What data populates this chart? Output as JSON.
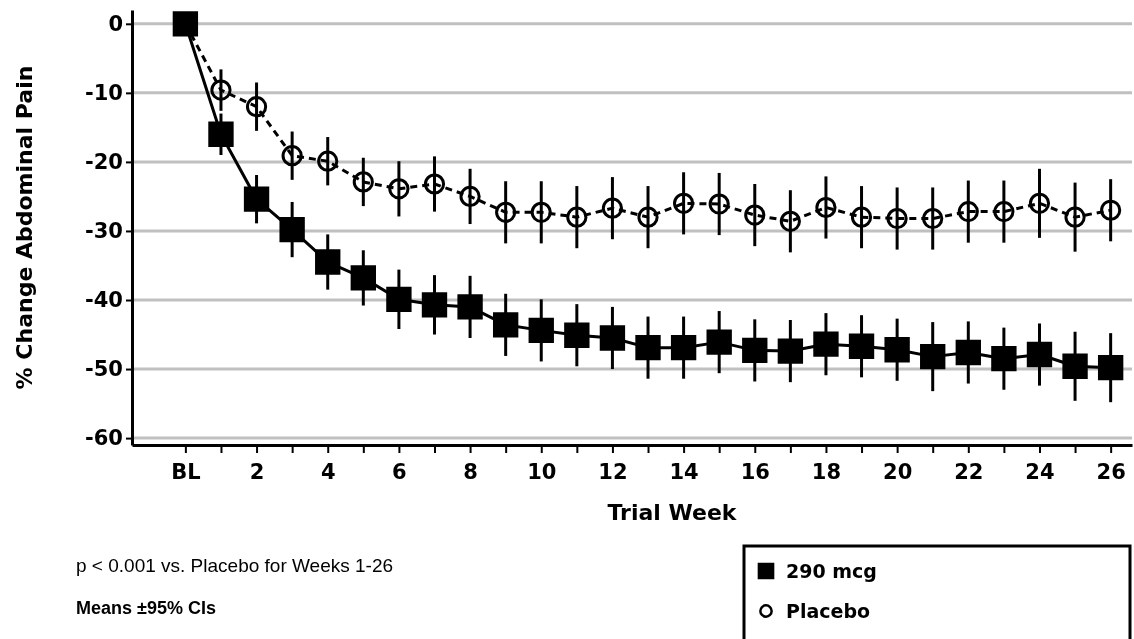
{
  "chart_data": {
    "type": "line",
    "xlabel": "Trial Week",
    "ylabel": "% Change Abdominal Pain",
    "x": [
      0,
      1,
      2,
      3,
      4,
      5,
      6,
      7,
      8,
      9,
      10,
      11,
      12,
      13,
      14,
      15,
      16,
      17,
      18,
      19,
      20,
      21,
      22,
      23,
      24,
      25,
      26
    ],
    "series": [
      {
        "name": "290 mcg",
        "color": "#000000",
        "marker": "square",
        "line_style": "solid",
        "values": [
          0,
          -16,
          -25.4,
          -29.8,
          -34.5,
          -36.8,
          -39.9,
          -40.7,
          -41,
          -43.6,
          -44.4,
          -45.1,
          -45.5,
          -46.9,
          -46.9,
          -46.1,
          -47.3,
          -47.4,
          -46.4,
          -46.7,
          -47.2,
          -48.2,
          -47.6,
          -48.5,
          -47.9,
          -49.6,
          -49.8
        ],
        "errors": [
          null,
          3,
          3.5,
          4,
          4,
          4,
          4.3,
          4.3,
          4.5,
          4.5,
          4.5,
          4.5,
          4.5,
          4.5,
          4.5,
          4.5,
          4.5,
          4.5,
          4.5,
          4.5,
          4.5,
          5,
          4.5,
          4.5,
          4.5,
          5,
          5
        ]
      },
      {
        "name": "Placebo",
        "color": "#000000",
        "marker": "circle",
        "line_style": "dashed",
        "values": [
          0,
          -9.6,
          -12,
          -19.1,
          -19.9,
          -22.9,
          -23.9,
          -23.2,
          -25,
          -27.3,
          -27.3,
          -28,
          -26.7,
          -28,
          -26,
          -26.1,
          -27.7,
          -28.6,
          -26.6,
          -28,
          -28.2,
          -28.2,
          -27.2,
          -27.2,
          -26,
          -28,
          -27
        ],
        "errors": [
          null,
          3,
          3.5,
          3.5,
          3.5,
          3.5,
          4,
          4,
          4,
          4.5,
          4.5,
          4.5,
          4.5,
          4.5,
          4.5,
          4.5,
          4.5,
          4.5,
          4.5,
          4.5,
          4.5,
          4.5,
          4.5,
          4.5,
          5,
          5,
          4.5
        ]
      }
    ],
    "xlim": [
      -1.5,
      26.6
    ],
    "xticks": [
      {
        "value": 0,
        "label": "BL"
      },
      {
        "value": 1,
        "label": null
      },
      2,
      {
        "value": 3,
        "label": null
      },
      4,
      {
        "value": 5,
        "label": null
      },
      6,
      {
        "value": 7,
        "label": null
      },
      8,
      {
        "value": 9,
        "label": null
      },
      10,
      {
        "value": 11,
        "label": null
      },
      12,
      {
        "value": 13,
        "label": null
      },
      14,
      {
        "value": 15,
        "label": null
      },
      16,
      {
        "value": 17,
        "label": null
      },
      18,
      {
        "value": 19,
        "label": null
      },
      20,
      {
        "value": 21,
        "label": null
      },
      22,
      {
        "value": 23,
        "label": null
      },
      24,
      {
        "value": 25,
        "label": null
      },
      26
    ],
    "ylim": [
      -61,
      2
    ],
    "yticks": [
      0,
      -10,
      -20,
      -30,
      -40,
      -50,
      -60
    ],
    "grid": "y",
    "legend": "bottom right",
    "annotations": [
      "p < 0.001 vs. Placebo for Weeks 1-26",
      "Means ±95% CIs"
    ]
  }
}
